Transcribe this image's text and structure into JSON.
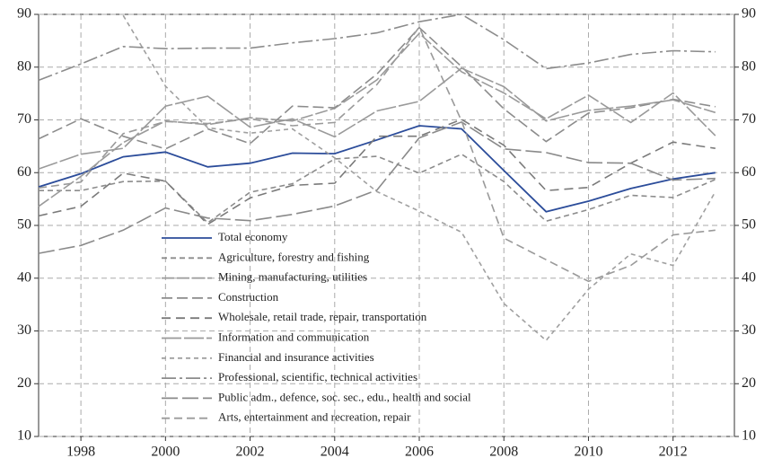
{
  "chart_data": {
    "type": "line",
    "x": [
      1997,
      1998,
      1999,
      2000,
      2001,
      2002,
      2003,
      2004,
      2005,
      2006,
      2007,
      2008,
      2009,
      2010,
      2011,
      2012,
      2013
    ],
    "xlim": [
      1997,
      2013.45
    ],
    "xticks": [
      1998,
      2000,
      2002,
      2004,
      2006,
      2008,
      2010,
      2012
    ],
    "ylim": [
      10,
      90
    ],
    "yticks": [
      10,
      20,
      30,
      40,
      50,
      60,
      70,
      80,
      90
    ],
    "y2lim": [
      10,
      90
    ],
    "y2ticks": [
      10,
      20,
      30,
      40,
      50,
      60,
      70,
      80,
      90
    ],
    "grid": true,
    "legend": "lower left",
    "series": [
      {
        "name": "Total economy",
        "color": "#2b4c9a",
        "dash": "none",
        "values": [
          57.3,
          59.8,
          63,
          63.9,
          61.1,
          61.8,
          63.7,
          63.6,
          66.2,
          68.9,
          68.3,
          60.4,
          52.6,
          54.6,
          57,
          58.8,
          60
        ]
      },
      {
        "name": "Agriculture, forestry and fishing",
        "color": "#8c8c8c",
        "dash": "6 4",
        "values": [
          56.6,
          56.6,
          58.3,
          58.4,
          50.5,
          56.3,
          57.9,
          62.6,
          63.1,
          59.9,
          63.5,
          58.3,
          50.8,
          53,
          55.7,
          55.3,
          58.7
        ]
      },
      {
        "name": "Mining, manufacturing, utilities",
        "color": "#9a9a9a",
        "dash": "14 3",
        "values": [
          53.6,
          59.3,
          65.7,
          69.8,
          69.1,
          70.4,
          69.8,
          72.2,
          77.6,
          86.4,
          79.1,
          75.1,
          70.2,
          74.7,
          69.5,
          75.1,
          67
        ]
      },
      {
        "name": "Construction",
        "color": "#8c8c8c",
        "dash": "12 5",
        "values": [
          66.4,
          70.2,
          66.9,
          64.5,
          68.3,
          65.5,
          72.6,
          72.3,
          78.7,
          87.5,
          80.1,
          72.1,
          65.9,
          71.3,
          72.3,
          73.9,
          72.5
        ]
      },
      {
        "name": "Wholesale, retail trade, repair, transportation",
        "color": "#7a7a7a",
        "dash": "10 6",
        "values": [
          51.8,
          53.6,
          59.9,
          58.4,
          50.2,
          55.2,
          57.6,
          58,
          66.9,
          66.9,
          70.1,
          65.2,
          56.6,
          57.2,
          61.8,
          65.8,
          64.6
        ]
      },
      {
        "name": "Information and communication",
        "color": "#9a9a9a",
        "dash": "22 3",
        "values": [
          60.7,
          63.5,
          64.6,
          72.6,
          74.5,
          68.6,
          70.2,
          66.8,
          71.7,
          73.5,
          79.8,
          76.3,
          69.8,
          71.8,
          72.6,
          73.8,
          71.4
        ]
      },
      {
        "name": "Financial and insurance activities",
        "color": "#a0a0a0",
        "dash": "5 4",
        "values": [
          null,
          null,
          89.8,
          76.4,
          68.5,
          67.5,
          68.3,
          62.8,
          56.4,
          52.7,
          48.7,
          35.2,
          28.2,
          37.9,
          44.6,
          42.4,
          56.4
        ]
      },
      {
        "name": "Professional, scientific, technical activities",
        "color": "#8c8c8c",
        "dash": "16 4 3 4",
        "values": [
          77.5,
          80.6,
          83.9,
          83.5,
          83.6,
          83.6,
          84.6,
          85.4,
          86.5,
          88.6,
          90,
          85.2,
          79.7,
          80.8,
          82.4,
          83.1,
          82.9
        ]
      },
      {
        "name": "Public adm., defence, soc. sec., edu., health and social",
        "color": "#8a8a8a",
        "dash": "18 5",
        "values": [
          44.7,
          46.2,
          49.1,
          53.3,
          51.4,
          50.9,
          52.1,
          53.7,
          56.7,
          66.6,
          69.6,
          64.5,
          63.8,
          61.9,
          61.8,
          58.6,
          58.9
        ]
      },
      {
        "name": "Arts, entertainment and recreation, repair",
        "color": "#9a9a9a",
        "dash": "9 5",
        "values": [
          57.1,
          58.2,
          67.4,
          69.7,
          69.3,
          70.2,
          68.9,
          69.5,
          76.7,
          87.6,
          69.8,
          47.6,
          43.5,
          39.4,
          42.4,
          48.2,
          49.1
        ]
      }
    ]
  }
}
